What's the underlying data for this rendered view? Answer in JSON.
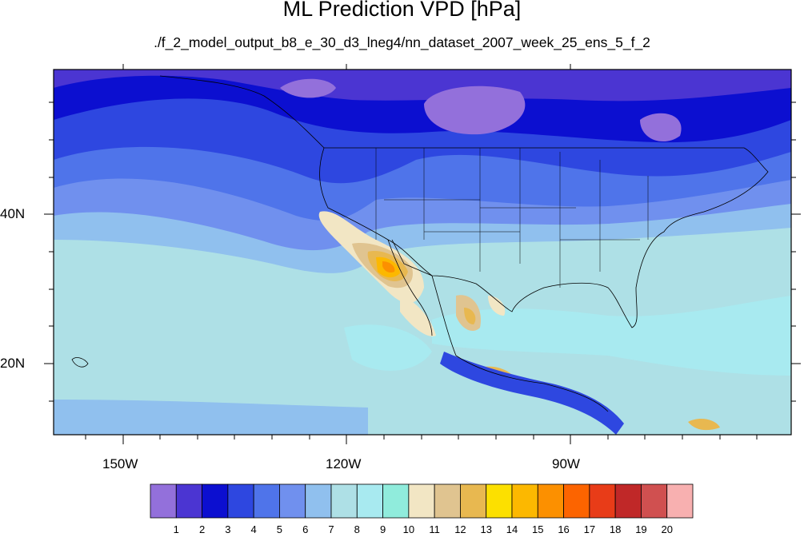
{
  "title": "ML Prediction VPD [hPa]",
  "subtitle": "./f_2_model_output_b8_e_30_d3_lneg4/nn_dataset_2007_week_25_ens_5_f_2",
  "axes": {
    "lat_labels": [
      "40N",
      "20N"
    ],
    "lon_labels": [
      "150W",
      "120W",
      "90W"
    ]
  },
  "colorbar": {
    "levels": [
      "1",
      "2",
      "3",
      "4",
      "5",
      "6",
      "7",
      "8",
      "9",
      "10",
      "11",
      "12",
      "13",
      "14",
      "15",
      "16",
      "17",
      "18",
      "19",
      "20"
    ],
    "colors": [
      "#9370db",
      "#4b35d2",
      "#0c0fd0",
      "#2e47e0",
      "#4f74ea",
      "#7090ee",
      "#90c0ee",
      "#aee0e6",
      "#a8eaf0",
      "#90ecdc",
      "#f2e6c4",
      "#e0c490",
      "#e8b850",
      "#fce000",
      "#fcb800",
      "#fc9000",
      "#fc6400",
      "#e83c18",
      "#c02828",
      "#d05050",
      "#f8b0b0"
    ]
  },
  "colors": {
    "ocean_far": "#a8dde4",
    "land_outline": "#000000"
  }
}
